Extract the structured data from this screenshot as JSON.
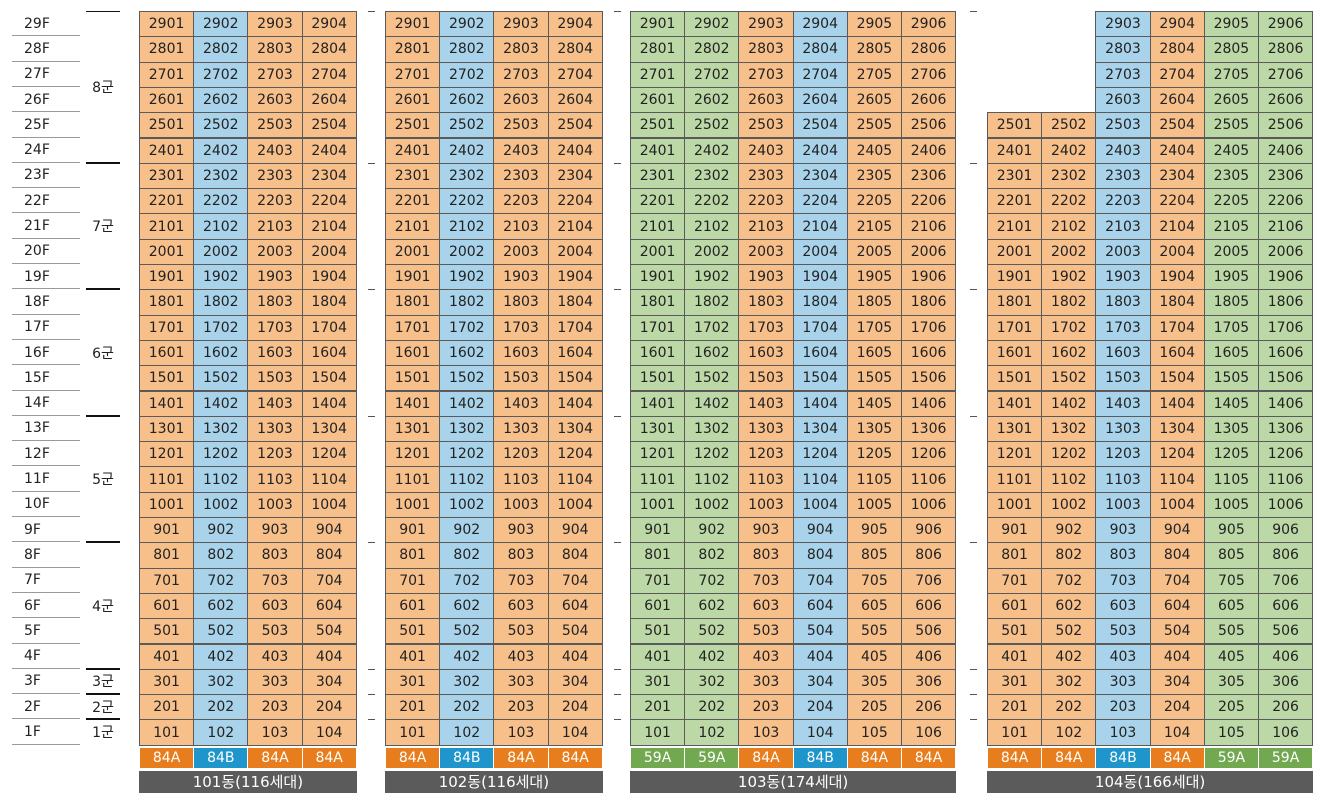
{
  "floors": [
    "29F",
    "28F",
    "27F",
    "26F",
    "25F",
    "24F",
    "23F",
    "22F",
    "21F",
    "20F",
    "19F",
    "18F",
    "17F",
    "16F",
    "15F",
    "14F",
    "13F",
    "12F",
    "11F",
    "10F",
    "9F",
    "8F",
    "7F",
    "6F",
    "5F",
    "4F",
    "3F",
    "2F",
    "1F"
  ],
  "groups": [
    {
      "label": "8군",
      "top_floor": 29,
      "bottom_floor": 24
    },
    {
      "label": "7군",
      "top_floor": 23,
      "bottom_floor": 19
    },
    {
      "label": "6군",
      "top_floor": 18,
      "bottom_floor": 14
    },
    {
      "label": "5군",
      "top_floor": 13,
      "bottom_floor": 9
    },
    {
      "label": "4군",
      "top_floor": 8,
      "bottom_floor": 4
    },
    {
      "label": "3군",
      "top_floor": 3,
      "bottom_floor": 3
    },
    {
      "label": "2군",
      "top_floor": 2,
      "bottom_floor": 2
    },
    {
      "label": "1군",
      "top_floor": 1,
      "bottom_floor": 1
    }
  ],
  "colors": {
    "84A": "#f7bf8a",
    "84B": "#a9d3ea",
    "59A": "#bcd8a6",
    "type_84A": "#e87d1e",
    "type_84B": "#1f96cb",
    "type_59A": "#72a84f",
    "building_bar": "#5b5b5b"
  },
  "buildings": [
    {
      "name": "101동(116세대)",
      "columns": [
        {
          "line": "01",
          "type": "84A",
          "top_floor": 29
        },
        {
          "line": "02",
          "type": "84B",
          "top_floor": 29
        },
        {
          "line": "03",
          "type": "84A",
          "top_floor": 29
        },
        {
          "line": "04",
          "type": "84A",
          "top_floor": 29
        }
      ]
    },
    {
      "name": "102동(116세대)",
      "columns": [
        {
          "line": "01",
          "type": "84A",
          "top_floor": 29
        },
        {
          "line": "02",
          "type": "84B",
          "top_floor": 29
        },
        {
          "line": "03",
          "type": "84A",
          "top_floor": 29
        },
        {
          "line": "04",
          "type": "84A",
          "top_floor": 29
        }
      ]
    },
    {
      "name": "103동(174세대)",
      "columns": [
        {
          "line": "01",
          "type": "59A",
          "top_floor": 29
        },
        {
          "line": "02",
          "type": "59A",
          "top_floor": 29
        },
        {
          "line": "03",
          "type": "84A",
          "top_floor": 29
        },
        {
          "line": "04",
          "type": "84B",
          "top_floor": 29
        },
        {
          "line": "05",
          "type": "84A",
          "top_floor": 29
        },
        {
          "line": "06",
          "type": "84A",
          "top_floor": 29
        }
      ]
    },
    {
      "name": "104동(166세대)",
      "columns": [
        {
          "line": "01",
          "type": "84A",
          "top_floor": 25
        },
        {
          "line": "02",
          "type": "84A",
          "top_floor": 25
        },
        {
          "line": "03",
          "type": "84B",
          "top_floor": 29
        },
        {
          "line": "04",
          "type": "84A",
          "top_floor": 29
        },
        {
          "line": "05",
          "type": "59A",
          "top_floor": 29
        },
        {
          "line": "06",
          "type": "59A",
          "top_floor": 29
        }
      ]
    }
  ]
}
